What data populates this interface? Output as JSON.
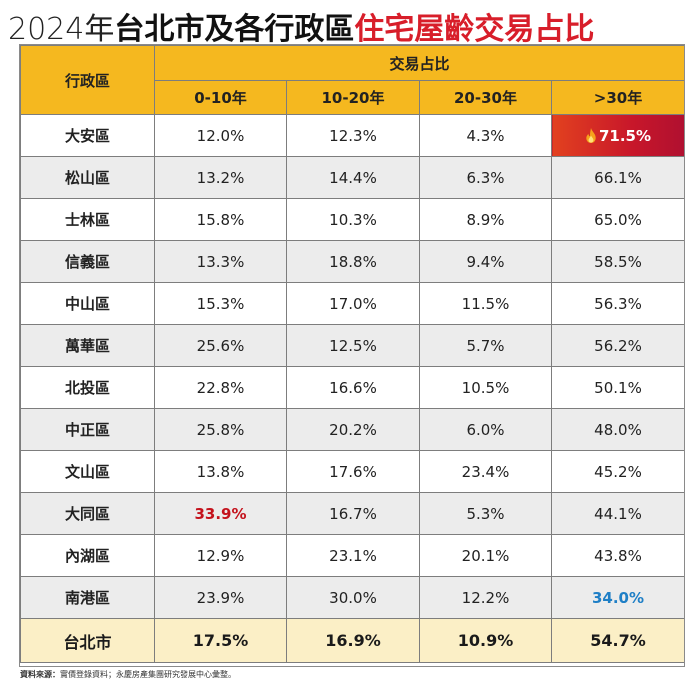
{
  "title": {
    "year": "2024年",
    "black": "台北市及各行政區",
    "red": "住宅屋齡交易占比"
  },
  "header": {
    "district": "行政區",
    "group": "交易占比",
    "columns": [
      "0-10年",
      "10-20年",
      "20-30年",
      ">30年"
    ]
  },
  "rows": [
    {
      "district": "大安區",
      "values": [
        "12.0%",
        "12.3%",
        "4.3%",
        "71.5%"
      ]
    },
    {
      "district": "松山區",
      "values": [
        "13.2%",
        "14.4%",
        "6.3%",
        "66.1%"
      ]
    },
    {
      "district": "士林區",
      "values": [
        "15.8%",
        "10.3%",
        "8.9%",
        "65.0%"
      ]
    },
    {
      "district": "信義區",
      "values": [
        "13.3%",
        "18.8%",
        "9.4%",
        "58.5%"
      ]
    },
    {
      "district": "中山區",
      "values": [
        "15.3%",
        "17.0%",
        "11.5%",
        "56.3%"
      ]
    },
    {
      "district": "萬華區",
      "values": [
        "25.6%",
        "12.5%",
        "5.7%",
        "56.2%"
      ]
    },
    {
      "district": "北投區",
      "values": [
        "22.8%",
        "16.6%",
        "10.5%",
        "50.1%"
      ]
    },
    {
      "district": "中正區",
      "values": [
        "25.8%",
        "20.2%",
        "6.0%",
        "48.0%"
      ]
    },
    {
      "district": "文山區",
      "values": [
        "13.8%",
        "17.6%",
        "23.4%",
        "45.2%"
      ]
    },
    {
      "district": "大同區",
      "values": [
        "33.9%",
        "16.7%",
        "5.3%",
        "44.1%"
      ]
    },
    {
      "district": "內湖區",
      "values": [
        "12.9%",
        "23.1%",
        "20.1%",
        "43.8%"
      ]
    },
    {
      "district": "南港區",
      "values": [
        "23.9%",
        "30.0%",
        "12.2%",
        "34.0%"
      ]
    }
  ],
  "total": {
    "district": "台北市",
    "values": [
      "17.5%",
      "16.9%",
      "10.9%",
      "54.7%"
    ]
  },
  "highlights": {
    "hot": {
      "row": 0,
      "col": 3,
      "icon": "fire-icon"
    },
    "red": {
      "row": 9,
      "col": 0
    },
    "blue": {
      "row": 11,
      "col": 3
    }
  },
  "colors": {
    "header": "#f5b81f",
    "title_red": "#d81e2a",
    "hot_bg": "#c8172a",
    "highlight_red": "#c4121c",
    "highlight_blue": "#1f7fc6",
    "total_bg": "#fbefc6",
    "alt_row": "#ececec"
  },
  "footer": {
    "label": "資料來源：",
    "text": "實價登錄資料；永慶房產集團研究發展中心彙整。"
  },
  "chart_data": {
    "type": "table",
    "title": "2024年台北市及各行政區住宅屋齡交易占比",
    "columns": [
      "行政區",
      "0-10年",
      "10-20年",
      "20-30年",
      ">30年"
    ],
    "categories": [
      "大安區",
      "松山區",
      "士林區",
      "信義區",
      "中山區",
      "萬華區",
      "北投區",
      "中正區",
      "文山區",
      "大同區",
      "內湖區",
      "南港區",
      "台北市"
    ],
    "series": [
      {
        "name": "0-10年",
        "values": [
          12.0,
          13.2,
          15.8,
          13.3,
          15.3,
          25.6,
          22.8,
          25.8,
          13.8,
          33.9,
          12.9,
          23.9,
          17.5
        ]
      },
      {
        "name": "10-20年",
        "values": [
          12.3,
          14.4,
          10.3,
          18.8,
          17.0,
          12.5,
          16.6,
          20.2,
          17.6,
          16.7,
          23.1,
          30.0,
          16.9
        ]
      },
      {
        "name": "20-30年",
        "values": [
          4.3,
          6.3,
          8.9,
          9.4,
          11.5,
          5.7,
          10.5,
          6.0,
          23.4,
          5.3,
          20.1,
          12.2,
          10.9
        ]
      },
      {
        "name": ">30年",
        "values": [
          71.5,
          66.1,
          65.0,
          58.5,
          56.3,
          56.2,
          50.1,
          48.0,
          45.2,
          44.1,
          43.8,
          34.0,
          54.7
        ]
      }
    ]
  }
}
